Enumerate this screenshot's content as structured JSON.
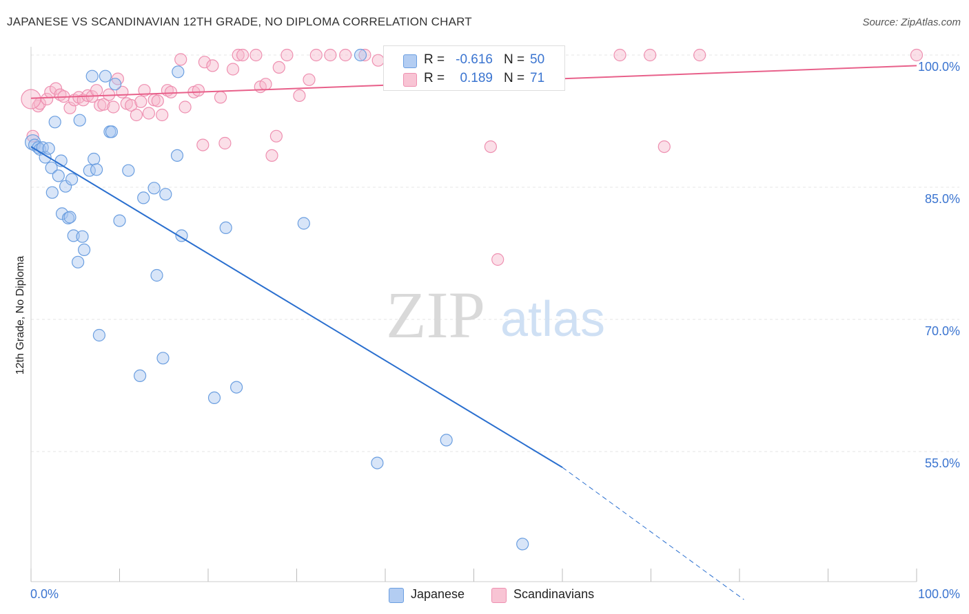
{
  "header": {
    "title": "JAPANESE VS SCANDINAVIAN 12TH GRADE, NO DIPLOMA CORRELATION CHART",
    "source": "Source: ZipAtlas.com"
  },
  "watermark": {
    "zip": "ZIP",
    "atlas": "atlas"
  },
  "stats": {
    "japanese": {
      "r_label": "R =",
      "r_value": "-0.616",
      "n_label": "N =",
      "n_value": "50"
    },
    "scandinavians": {
      "r_label": "R =",
      "r_value": "0.189",
      "n_label": "N =",
      "n_value": "71"
    }
  },
  "legend": {
    "japanese": "Japanese",
    "scandinavians": "Scandinavians"
  },
  "colors": {
    "japanese_fill": "#a8c6f0",
    "japanese_stroke": "#6a9ee0",
    "japanese_line": "#2a6fcf",
    "scand_fill": "#f7b9cd",
    "scand_stroke": "#ee8fb0",
    "scand_line": "#e8608a",
    "tick_label": "#3a74d0",
    "grid": "#e4e4e4"
  },
  "chart_data": {
    "type": "scatter",
    "title": "JAPANESE VS SCANDINAVIAN 12TH GRADE, NO DIPLOMA CORRELATION CHART",
    "xlabel": "",
    "ylabel": "12th Grade, No Diploma",
    "xlim": [
      0,
      100
    ],
    "ylim": [
      38.2,
      102.5
    ],
    "x_tick_labels": [
      {
        "value": 0,
        "label": "0.0%"
      },
      {
        "value": 100,
        "label": "100.0%"
      }
    ],
    "y_tick_labels": [
      {
        "value": 100,
        "label": "100.0%"
      },
      {
        "value": 85,
        "label": "85.0%"
      },
      {
        "value": 70,
        "label": "70.0%"
      },
      {
        "value": 55,
        "label": "55.0%"
      }
    ],
    "grid": true,
    "legend_position": "bottom-center",
    "series": [
      {
        "name": "Japanese",
        "points": [
          [
            0.2,
            90.1
          ],
          [
            0.4,
            89.8
          ],
          [
            0.8,
            89.5
          ],
          [
            1.0,
            89.3
          ],
          [
            1.3,
            89.5
          ],
          [
            1.6,
            88.4
          ],
          [
            2.0,
            89.4
          ],
          [
            2.3,
            87.2
          ],
          [
            2.4,
            84.4
          ],
          [
            2.7,
            92.4
          ],
          [
            3.1,
            86.3
          ],
          [
            3.4,
            88.0
          ],
          [
            3.5,
            82.0
          ],
          [
            3.9,
            85.1
          ],
          [
            4.2,
            81.5
          ],
          [
            4.4,
            81.6
          ],
          [
            4.6,
            85.9
          ],
          [
            4.8,
            79.5
          ],
          [
            5.3,
            76.5
          ],
          [
            5.5,
            92.6
          ],
          [
            5.8,
            79.4
          ],
          [
            6.0,
            77.9
          ],
          [
            6.6,
            86.9
          ],
          [
            6.9,
            97.6
          ],
          [
            7.1,
            88.2
          ],
          [
            7.4,
            87.0
          ],
          [
            7.7,
            68.2
          ],
          [
            8.4,
            97.6
          ],
          [
            8.9,
            91.3
          ],
          [
            9.1,
            91.3
          ],
          [
            9.5,
            96.7
          ],
          [
            10.0,
            81.2
          ],
          [
            11.0,
            86.9
          ],
          [
            12.3,
            63.6
          ],
          [
            12.7,
            83.8
          ],
          [
            13.9,
            84.9
          ],
          [
            14.2,
            75.0
          ],
          [
            14.9,
            65.6
          ],
          [
            15.2,
            84.2
          ],
          [
            16.5,
            88.6
          ],
          [
            16.6,
            98.1
          ],
          [
            17.0,
            79.5
          ],
          [
            20.7,
            61.1
          ],
          [
            22.0,
            80.4
          ],
          [
            23.2,
            62.3
          ],
          [
            30.8,
            80.9
          ],
          [
            37.2,
            100.0
          ],
          [
            39.1,
            53.7
          ],
          [
            46.9,
            56.3
          ],
          [
            55.5,
            44.5
          ]
        ]
      },
      {
        "name": "Scandinavians",
        "points": [
          [
            0.2,
            90.8
          ],
          [
            0.8,
            94.2
          ],
          [
            1.0,
            94.5
          ],
          [
            1.8,
            95.0
          ],
          [
            2.2,
            95.8
          ],
          [
            2.8,
            96.2
          ],
          [
            3.3,
            95.5
          ],
          [
            3.7,
            95.3
          ],
          [
            4.4,
            94.0
          ],
          [
            4.9,
            94.9
          ],
          [
            5.4,
            95.2
          ],
          [
            5.9,
            94.9
          ],
          [
            6.4,
            95.4
          ],
          [
            6.9,
            95.3
          ],
          [
            7.4,
            96.0
          ],
          [
            7.8,
            94.3
          ],
          [
            8.2,
            94.4
          ],
          [
            8.8,
            95.5
          ],
          [
            9.3,
            94.1
          ],
          [
            9.8,
            97.3
          ],
          [
            10.3,
            95.8
          ],
          [
            10.8,
            94.5
          ],
          [
            11.3,
            94.3
          ],
          [
            11.9,
            93.2
          ],
          [
            12.4,
            94.7
          ],
          [
            12.8,
            96.0
          ],
          [
            13.3,
            93.4
          ],
          [
            13.9,
            94.9
          ],
          [
            14.3,
            94.8
          ],
          [
            14.8,
            93.2
          ],
          [
            15.4,
            96.0
          ],
          [
            15.8,
            95.8
          ],
          [
            16.9,
            99.5
          ],
          [
            17.4,
            94.1
          ],
          [
            18.4,
            95.8
          ],
          [
            18.9,
            96.0
          ],
          [
            19.4,
            89.8
          ],
          [
            19.6,
            99.2
          ],
          [
            20.5,
            98.8
          ],
          [
            21.4,
            95.2
          ],
          [
            21.9,
            90.0
          ],
          [
            22.8,
            98.4
          ],
          [
            23.4,
            100.0
          ],
          [
            23.9,
            100.0
          ],
          [
            25.4,
            100.0
          ],
          [
            25.9,
            96.4
          ],
          [
            26.5,
            96.7
          ],
          [
            27.2,
            88.6
          ],
          [
            27.7,
            90.8
          ],
          [
            28.0,
            98.6
          ],
          [
            28.9,
            100.0
          ],
          [
            30.3,
            95.4
          ],
          [
            31.4,
            97.2
          ],
          [
            32.2,
            100.0
          ],
          [
            33.8,
            100.0
          ],
          [
            35.5,
            100.0
          ],
          [
            37.7,
            100.0
          ],
          [
            39.2,
            99.4
          ],
          [
            41.9,
            100.0
          ],
          [
            43.8,
            100.0
          ],
          [
            44.9,
            100.0
          ],
          [
            47.2,
            100.0
          ],
          [
            47.9,
            100.0
          ],
          [
            51.9,
            89.6
          ],
          [
            52.7,
            76.8
          ],
          [
            66.5,
            100.0
          ],
          [
            69.9,
            100.0
          ],
          [
            71.5,
            89.6
          ],
          [
            75.5,
            100.0
          ],
          [
            100.0,
            100.0
          ],
          [
            0.0,
            95.0
          ]
        ]
      }
    ],
    "trend_lines": [
      {
        "series": "Japanese",
        "solid": [
          [
            0,
            89.6
          ],
          [
            60,
            53.2
          ]
        ],
        "dashed": [
          [
            60,
            53.2
          ],
          [
            80.5,
            38.2
          ]
        ]
      },
      {
        "series": "Scandinavians",
        "solid": [
          [
            0,
            95.1
          ],
          [
            100,
            98.8
          ]
        ]
      }
    ]
  }
}
